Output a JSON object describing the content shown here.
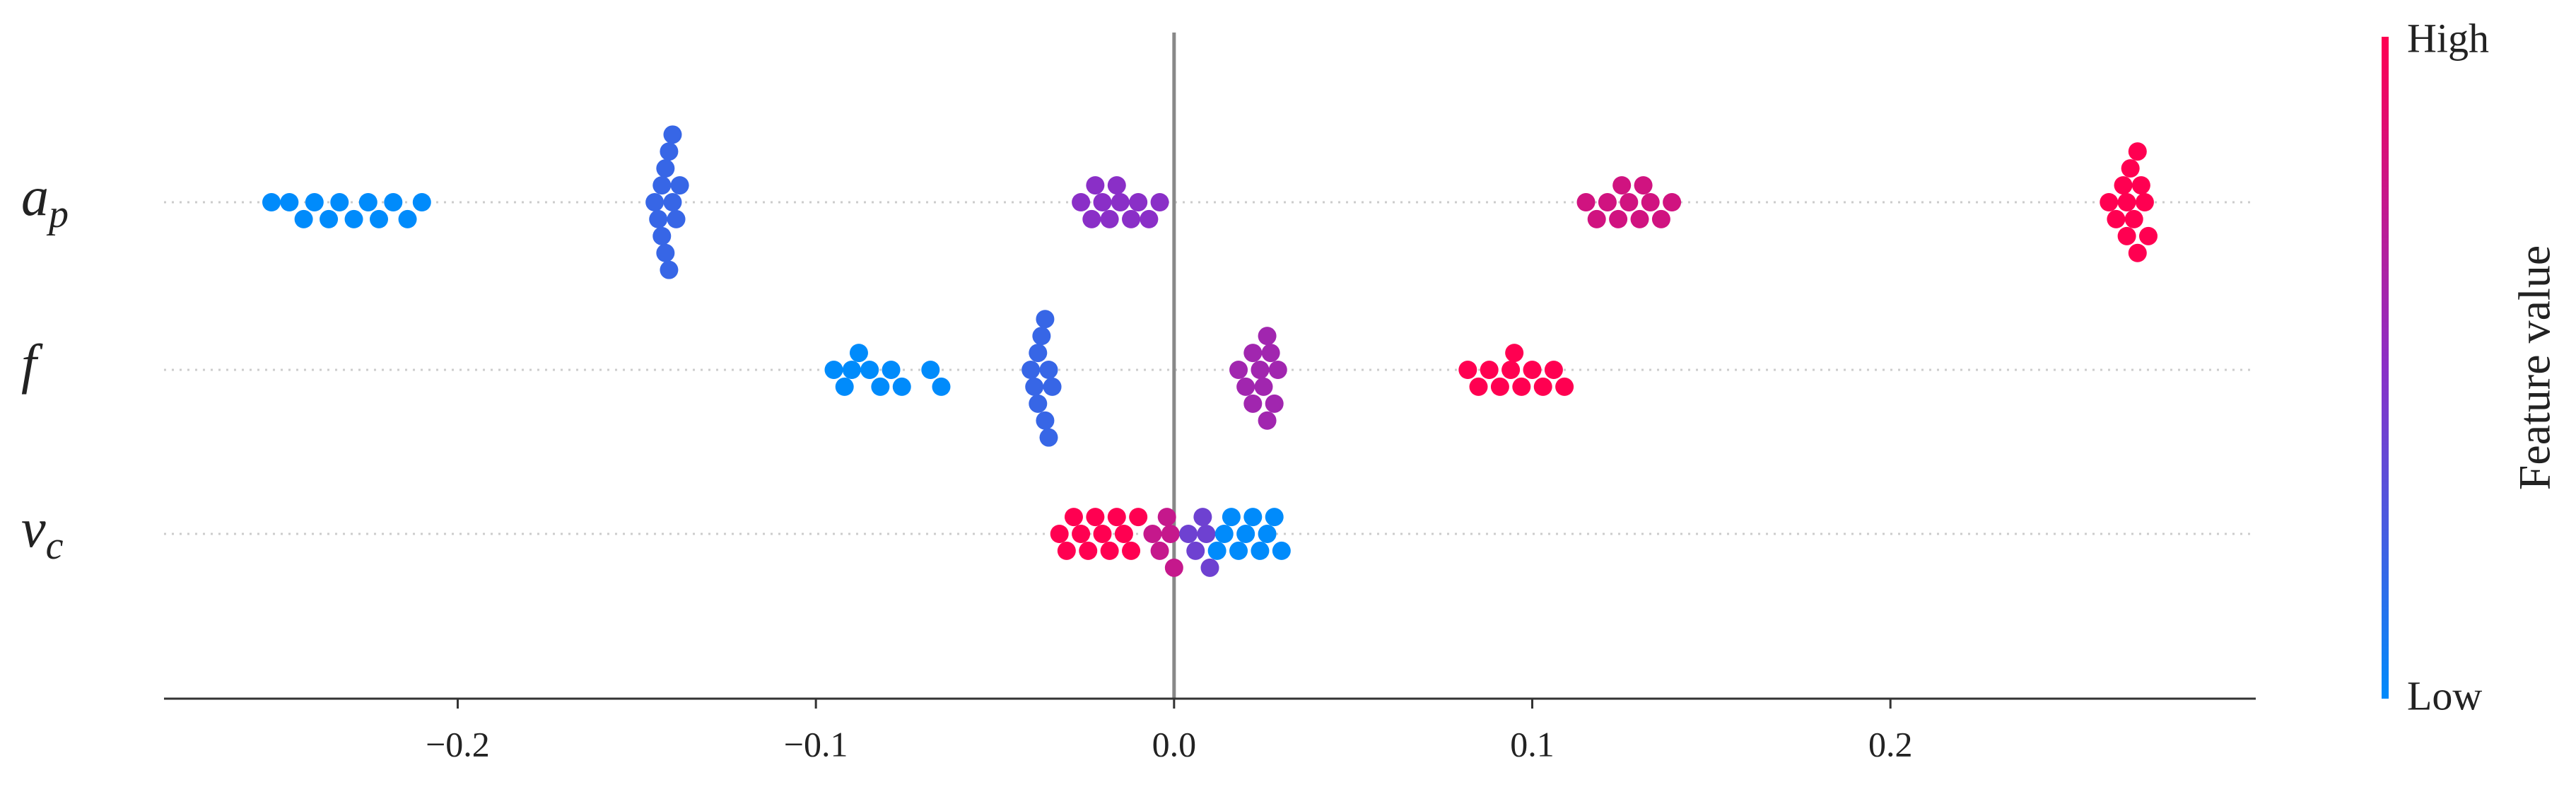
{
  "chart_data": {
    "type": "beeswarm",
    "categories": [
      {
        "symbol": "a",
        "subscript": "p"
      },
      {
        "symbol": "f"
      },
      {
        "symbol": "v",
        "subscript": "c"
      }
    ],
    "series": [
      {
        "shap": [
          -0.252,
          -0.247,
          -0.243,
          -0.24,
          -0.236,
          -0.233,
          -0.229,
          -0.225,
          -0.222,
          -0.218,
          -0.214,
          -0.21,
          -0.145,
          -0.144,
          -0.143,
          -0.142,
          -0.142,
          -0.141,
          -0.14,
          -0.139,
          -0.138,
          -0.143,
          -0.141,
          -0.14,
          -0.026,
          -0.023,
          -0.02,
          -0.018,
          -0.015,
          -0.012,
          -0.01,
          -0.007,
          -0.004,
          -0.022,
          -0.016,
          0.115,
          0.118,
          0.121,
          0.124,
          0.127,
          0.13,
          0.133,
          0.136,
          0.139,
          0.125,
          0.131,
          0.261,
          0.263,
          0.265,
          0.266,
          0.267,
          0.268,
          0.269,
          0.27,
          0.271,
          0.272,
          0.266,
          0.269
        ],
        "feature_value": [
          0,
          0,
          0,
          0,
          0,
          0,
          0,
          0,
          0,
          0,
          0,
          0,
          0.2,
          0.2,
          0.2,
          0.2,
          0.2,
          0.2,
          0.2,
          0.2,
          0.2,
          0.2,
          0.2,
          0.2,
          0.5,
          0.5,
          0.5,
          0.5,
          0.5,
          0.5,
          0.5,
          0.5,
          0.5,
          0.5,
          0.5,
          0.8,
          0.8,
          0.8,
          0.8,
          0.8,
          0.8,
          0.8,
          0.8,
          0.8,
          0.8,
          0.8,
          1,
          1,
          1,
          1,
          1,
          1,
          1,
          1,
          1,
          1,
          1,
          1
        ]
      },
      {
        "shap": [
          -0.095,
          -0.092,
          -0.09,
          -0.088,
          -0.085,
          -0.082,
          -0.079,
          -0.076,
          -0.068,
          -0.065,
          -0.04,
          -0.039,
          -0.038,
          -0.037,
          -0.036,
          -0.035,
          -0.034,
          -0.038,
          -0.036,
          -0.035,
          0.018,
          0.02,
          0.022,
          0.024,
          0.025,
          0.026,
          0.027,
          0.028,
          0.029,
          0.022,
          0.026,
          0.082,
          0.085,
          0.088,
          0.091,
          0.094,
          0.097,
          0.1,
          0.103,
          0.106,
          0.109,
          0.095
        ],
        "feature_value": [
          0,
          0,
          0,
          0,
          0,
          0,
          0,
          0,
          0,
          0,
          0.2,
          0.2,
          0.2,
          0.2,
          0.2,
          0.2,
          0.2,
          0.2,
          0.2,
          0.2,
          0.6,
          0.6,
          0.6,
          0.6,
          0.6,
          0.6,
          0.6,
          0.6,
          0.6,
          0.6,
          0.6,
          1,
          1,
          1,
          1,
          1,
          1,
          1,
          1,
          1,
          1,
          1
        ]
      },
      {
        "shap": [
          -0.032,
          -0.03,
          -0.028,
          -0.026,
          -0.024,
          -0.022,
          -0.02,
          -0.018,
          -0.016,
          -0.014,
          -0.012,
          -0.01,
          -0.006,
          -0.004,
          -0.002,
          -0.001,
          0.0,
          0.004,
          0.006,
          0.008,
          0.009,
          0.01,
          0.012,
          0.014,
          0.016,
          0.018,
          0.02,
          0.022,
          0.024,
          0.026,
          0.028,
          0.03
        ],
        "feature_value": [
          1,
          1,
          1,
          1,
          1,
          1,
          1,
          1,
          1,
          1,
          1,
          1,
          0.75,
          0.75,
          0.75,
          0.75,
          0.75,
          0.4,
          0.4,
          0.4,
          0.4,
          0.4,
          0,
          0,
          0,
          0,
          0,
          0,
          0,
          0,
          0,
          0
        ]
      }
    ],
    "colormap": [
      "#008bfb",
      "#8a2fc7",
      "#ff0051"
    ],
    "xlim": [
      -0.282,
      0.302
    ],
    "xticks": [
      {
        "value": -0.2,
        "label": "−0.2"
      },
      {
        "value": -0.1,
        "label": "−0.1"
      },
      {
        "value": 0,
        "label": "0.0"
      },
      0.1,
      0.2
    ],
    "colorbar": {
      "label": "Feature value",
      "high": "High",
      "low": "Low"
    }
  }
}
